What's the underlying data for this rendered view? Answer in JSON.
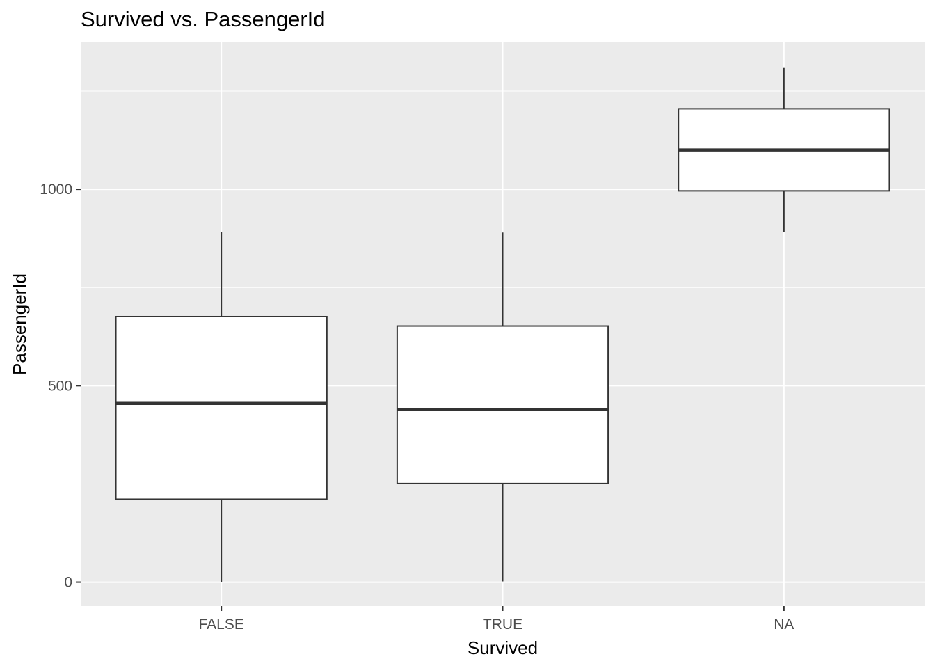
{
  "chart_data": {
    "type": "boxplot",
    "title": "Survived vs. PassengerId",
    "xlabel": "Survived",
    "ylabel": "PassengerId",
    "categories": [
      "FALSE",
      "TRUE",
      "NA"
    ],
    "boxes": [
      {
        "category": "FALSE",
        "min": 1,
        "q1": 211,
        "median": 455,
        "q3": 676,
        "max": 891
      },
      {
        "category": "TRUE",
        "min": 2,
        "q1": 251,
        "median": 439,
        "q3": 652,
        "max": 890
      },
      {
        "category": "NA",
        "min": 892,
        "q1": 996,
        "median": 1100,
        "q3": 1205,
        "max": 1309
      }
    ],
    "yticks": [
      0,
      500,
      1000
    ],
    "yminor": [
      250,
      750,
      1250
    ],
    "ylim": [
      -61,
      1374
    ],
    "grid": true,
    "colors": {
      "panel": "#ebebeb",
      "grid": "#ffffff",
      "box_fill": "#ffffff",
      "box_stroke": "#333333"
    }
  }
}
